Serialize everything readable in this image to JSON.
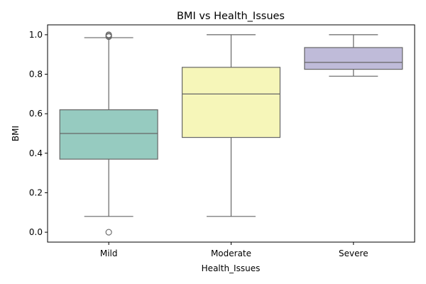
{
  "chart_data": {
    "type": "box",
    "title": "BMI vs Health_Issues",
    "xlabel": "Health_Issues",
    "ylabel": "BMI",
    "categories": [
      "Mild",
      "Moderate",
      "Severe"
    ],
    "ylim": [
      -0.05,
      1.05
    ],
    "yticks": [
      0.0,
      0.2,
      0.4,
      0.6,
      0.8,
      1.0
    ],
    "ytick_labels": [
      "0.0",
      "0.2",
      "0.4",
      "0.6",
      "0.8",
      "1.0"
    ],
    "grid": false,
    "boxes": [
      {
        "category": "Mild",
        "whisker_low": 0.08,
        "q1": 0.37,
        "median": 0.5,
        "q3": 0.62,
        "whisker_high": 0.985,
        "outliers": [
          0.0,
          0.99,
          0.995,
          1.0
        ],
        "color": "#96cbc0"
      },
      {
        "category": "Moderate",
        "whisker_low": 0.08,
        "q1": 0.48,
        "median": 0.7,
        "q3": 0.835,
        "whisker_high": 1.0,
        "outliers": [],
        "color": "#f6f6b9"
      },
      {
        "category": "Severe",
        "whisker_low": 0.79,
        "q1": 0.825,
        "median": 0.86,
        "q3": 0.935,
        "whisker_high": 1.0,
        "outliers": [],
        "color": "#bfbbd9"
      }
    ]
  }
}
